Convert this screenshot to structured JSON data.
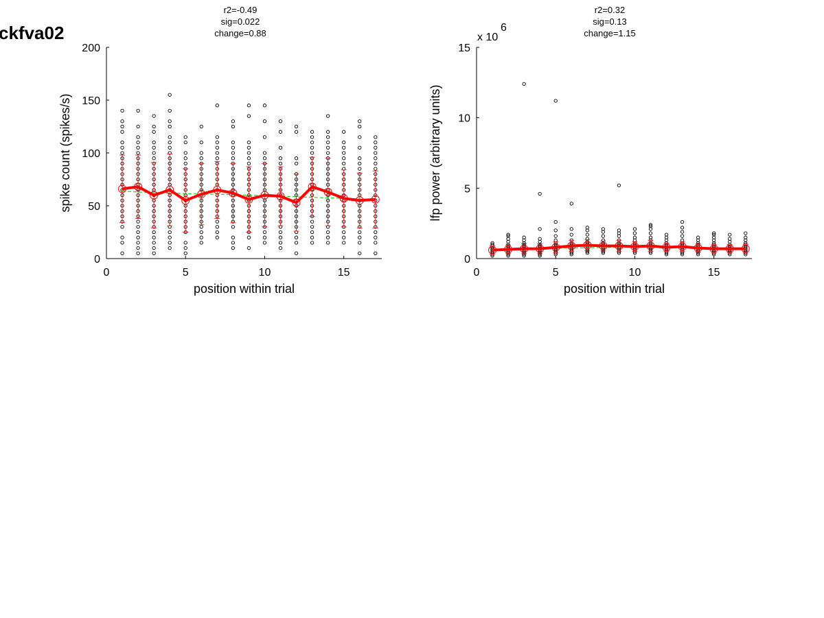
{
  "figure_title": "ckfva02",
  "chart_data": [
    {
      "type": "scatter",
      "annotations": [
        "r2=-0.49",
        "sig=0.022",
        "change=0.88"
      ],
      "xlabel": "position within trial",
      "ylabel": "spike count (spikes/s)",
      "xlim": [
        0,
        17.4
      ],
      "ylim": [
        0,
        200
      ],
      "xticks": [
        0,
        5,
        10,
        15
      ],
      "yticks": [
        0,
        50,
        100,
        150,
        200
      ],
      "multiplier": "",
      "grid": false,
      "colors": {
        "mean": "#ff0000",
        "errorbar": "#e03030",
        "fit": "#22cc22",
        "points": "#000000"
      },
      "scatter_points": [
        [
          1,
          [
            5,
            15,
            20,
            30,
            35,
            40,
            45,
            50,
            55,
            60,
            65,
            70,
            75,
            80,
            85,
            90,
            95,
            100,
            105,
            110,
            120,
            125,
            130,
            140
          ]
        ],
        [
          2,
          [
            5,
            10,
            15,
            20,
            25,
            30,
            35,
            40,
            45,
            50,
            55,
            60,
            65,
            70,
            75,
            80,
            85,
            90,
            95,
            100,
            105,
            110,
            115,
            125,
            140
          ]
        ],
        [
          3,
          [
            5,
            10,
            15,
            20,
            25,
            30,
            35,
            40,
            45,
            50,
            55,
            60,
            65,
            70,
            75,
            80,
            85,
            90,
            95,
            100,
            105,
            110,
            120,
            125,
            135
          ]
        ],
        [
          4,
          [
            10,
            15,
            20,
            25,
            30,
            35,
            40,
            45,
            50,
            55,
            60,
            65,
            70,
            75,
            80,
            85,
            90,
            95,
            100,
            105,
            110,
            115,
            125,
            130,
            140,
            155
          ]
        ],
        [
          5,
          [
            5,
            10,
            15,
            25,
            30,
            35,
            40,
            45,
            50,
            55,
            60,
            65,
            70,
            75,
            80,
            85,
            90,
            95,
            100,
            110,
            115
          ]
        ],
        [
          6,
          [
            15,
            20,
            25,
            30,
            35,
            40,
            45,
            50,
            55,
            60,
            65,
            70,
            75,
            80,
            85,
            90,
            95,
            100,
            110,
            125
          ]
        ],
        [
          7,
          [
            20,
            25,
            30,
            35,
            40,
            45,
            50,
            55,
            60,
            65,
            70,
            75,
            80,
            85,
            90,
            95,
            100,
            105,
            110,
            115,
            145
          ]
        ],
        [
          8,
          [
            10,
            15,
            20,
            30,
            35,
            40,
            45,
            50,
            55,
            60,
            65,
            70,
            75,
            80,
            85,
            90,
            95,
            100,
            105,
            110,
            125,
            130
          ]
        ],
        [
          9,
          [
            10,
            20,
            25,
            30,
            35,
            40,
            45,
            50,
            55,
            60,
            65,
            70,
            75,
            80,
            85,
            90,
            95,
            100,
            105,
            110,
            135,
            145
          ]
        ],
        [
          10,
          [
            15,
            20,
            25,
            30,
            35,
            40,
            45,
            50,
            55,
            60,
            65,
            70,
            75,
            80,
            85,
            90,
            95,
            100,
            115,
            130,
            145
          ]
        ],
        [
          11,
          [
            10,
            15,
            20,
            25,
            30,
            35,
            40,
            45,
            50,
            55,
            60,
            65,
            70,
            75,
            80,
            85,
            90,
            95,
            105,
            120,
            130
          ]
        ],
        [
          12,
          [
            5,
            15,
            20,
            25,
            30,
            35,
            40,
            45,
            50,
            55,
            60,
            65,
            70,
            75,
            80,
            90,
            95,
            120,
            125
          ]
        ],
        [
          13,
          [
            15,
            20,
            25,
            30,
            35,
            40,
            45,
            50,
            55,
            60,
            65,
            70,
            75,
            80,
            85,
            90,
            95,
            100,
            105,
            110,
            115,
            120
          ]
        ],
        [
          14,
          [
            15,
            20,
            25,
            30,
            35,
            40,
            45,
            50,
            55,
            60,
            65,
            70,
            75,
            80,
            85,
            90,
            95,
            100,
            105,
            110,
            115,
            120,
            135
          ]
        ],
        [
          15,
          [
            15,
            20,
            25,
            30,
            35,
            40,
            45,
            50,
            55,
            60,
            65,
            70,
            75,
            80,
            85,
            90,
            95,
            100,
            105,
            110,
            120
          ]
        ],
        [
          16,
          [
            5,
            15,
            20,
            25,
            30,
            35,
            40,
            45,
            50,
            55,
            60,
            65,
            70,
            75,
            80,
            85,
            90,
            95,
            105,
            115,
            125,
            130
          ]
        ],
        [
          17,
          [
            5,
            15,
            20,
            25,
            30,
            35,
            40,
            45,
            50,
            55,
            60,
            65,
            70,
            75,
            80,
            85,
            90,
            95,
            100,
            105,
            110,
            115
          ]
        ]
      ],
      "series": [
        {
          "role": "mean",
          "x": [
            1,
            2,
            3,
            4,
            5,
            6,
            7,
            8,
            9,
            10,
            11,
            12,
            13,
            14,
            15,
            16,
            17
          ],
          "y": [
            66,
            68,
            60,
            65,
            55,
            61,
            65,
            62,
            56,
            60,
            59,
            53,
            68,
            63,
            57,
            55,
            56
          ],
          "err": [
            32,
            30,
            31,
            34,
            30,
            29,
            27,
            28,
            31,
            30,
            28,
            27,
            28,
            32,
            27,
            26,
            27
          ]
        },
        {
          "role": "fit",
          "x": [
            1,
            2,
            3,
            4,
            5,
            6,
            7,
            8,
            9,
            10,
            11,
            12,
            13,
            14,
            15,
            16,
            17
          ],
          "y": [
            64,
            63,
            62.5,
            62,
            61.5,
            61,
            61,
            60.5,
            60,
            59.5,
            59,
            58.5,
            58,
            57.5,
            57,
            56.5,
            56
          ]
        }
      ]
    },
    {
      "type": "scatter",
      "annotations": [
        "r2=0.32",
        "sig=0.13",
        "change=1.15"
      ],
      "xlabel": "position within trial",
      "ylabel": "lfp power (arbitrary units)",
      "xlim": [
        0,
        17.4
      ],
      "ylim": [
        0,
        15
      ],
      "xticks": [
        0,
        5,
        10,
        15
      ],
      "yticks": [
        0,
        5,
        10,
        15
      ],
      "multiplier": "x 10",
      "multiplier_exponent": "6",
      "grid": false,
      "colors": {
        "mean": "#ff0000",
        "errorbar": "#e03030",
        "fit": "#22cc22",
        "points": "#000000"
      },
      "scatter_points": [
        [
          1,
          [
            0.2,
            0.3,
            0.4,
            0.5,
            0.6,
            0.7,
            0.8,
            0.9,
            1.0,
            1.1
          ]
        ],
        [
          2,
          [
            0.2,
            0.3,
            0.4,
            0.5,
            0.6,
            0.7,
            0.8,
            0.9,
            1.0,
            1.2,
            1.4,
            1.6,
            1.7
          ]
        ],
        [
          3,
          [
            0.2,
            0.3,
            0.4,
            0.5,
            0.6,
            0.7,
            0.8,
            0.9,
            1.0,
            1.1,
            1.3,
            1.5,
            12.4
          ]
        ],
        [
          4,
          [
            0.2,
            0.3,
            0.4,
            0.5,
            0.6,
            0.7,
            0.8,
            0.9,
            1.0,
            1.2,
            1.4,
            2.1,
            4.6
          ]
        ],
        [
          5,
          [
            0.3,
            0.4,
            0.5,
            0.6,
            0.7,
            0.8,
            0.9,
            1.0,
            1.1,
            1.3,
            1.6,
            2.0,
            2.6,
            11.2
          ]
        ],
        [
          6,
          [
            0.3,
            0.4,
            0.5,
            0.6,
            0.7,
            0.8,
            0.9,
            1.0,
            1.1,
            1.3,
            1.7,
            2.1,
            3.9
          ]
        ],
        [
          7,
          [
            0.4,
            0.5,
            0.6,
            0.7,
            0.8,
            0.9,
            1.0,
            1.1,
            1.2,
            1.4,
            1.7,
            2.0,
            2.2
          ]
        ],
        [
          8,
          [
            0.4,
            0.5,
            0.6,
            0.7,
            0.8,
            0.9,
            1.0,
            1.1,
            1.3,
            1.6,
            1.9,
            2.1
          ]
        ],
        [
          9,
          [
            0.4,
            0.5,
            0.6,
            0.7,
            0.8,
            0.9,
            1.0,
            1.1,
            1.3,
            1.6,
            1.8,
            2.0,
            5.2
          ]
        ],
        [
          10,
          [
            0.4,
            0.5,
            0.6,
            0.7,
            0.8,
            0.9,
            1.0,
            1.1,
            1.3,
            1.5,
            1.8,
            2.1
          ]
        ],
        [
          11,
          [
            0.4,
            0.5,
            0.6,
            0.7,
            0.8,
            0.9,
            1.0,
            1.1,
            1.3,
            1.5,
            1.8,
            2.1,
            2.3,
            2.4
          ]
        ],
        [
          12,
          [
            0.3,
            0.4,
            0.5,
            0.6,
            0.7,
            0.8,
            0.9,
            1.0,
            1.1,
            1.3,
            1.5,
            1.7
          ]
        ],
        [
          13,
          [
            0.3,
            0.4,
            0.5,
            0.6,
            0.7,
            0.8,
            0.9,
            1.0,
            1.1,
            1.3,
            1.6,
            1.9,
            2.2,
            2.6
          ]
        ],
        [
          14,
          [
            0.3,
            0.4,
            0.5,
            0.6,
            0.7,
            0.8,
            0.9,
            1.0,
            1.1,
            1.3,
            1.5
          ]
        ],
        [
          15,
          [
            0.3,
            0.4,
            0.5,
            0.6,
            0.7,
            0.8,
            0.9,
            1.0,
            1.1,
            1.3,
            1.5,
            1.7,
            1.8
          ]
        ],
        [
          16,
          [
            0.3,
            0.4,
            0.5,
            0.6,
            0.7,
            0.8,
            0.9,
            1.0,
            1.2,
            1.4,
            1.7
          ]
        ],
        [
          17,
          [
            0.3,
            0.4,
            0.5,
            0.6,
            0.7,
            0.8,
            0.9,
            1.0,
            1.1,
            1.3,
            1.5,
            1.8
          ]
        ]
      ],
      "series": [
        {
          "role": "mean",
          "x": [
            1,
            2,
            3,
            4,
            5,
            6,
            7,
            8,
            9,
            10,
            11,
            12,
            13,
            14,
            15,
            16,
            17
          ],
          "y": [
            0.6,
            0.65,
            0.7,
            0.7,
            0.8,
            0.9,
            0.95,
            0.9,
            0.9,
            0.85,
            0.9,
            0.8,
            0.85,
            0.75,
            0.7,
            0.7,
            0.7
          ],
          "err": [
            0.3,
            0.3,
            0.35,
            0.35,
            0.4,
            0.4,
            0.4,
            0.35,
            0.4,
            0.35,
            0.4,
            0.3,
            0.35,
            0.3,
            0.3,
            0.3,
            0.3
          ]
        },
        {
          "role": "fit",
          "x": [
            1,
            2,
            3,
            4,
            5,
            6,
            7,
            8,
            9,
            10,
            11,
            12,
            13,
            14,
            15,
            16,
            17
          ],
          "y": [
            0.65,
            0.67,
            0.69,
            0.71,
            0.73,
            0.75,
            0.77,
            0.79,
            0.8,
            0.8,
            0.8,
            0.79,
            0.78,
            0.77,
            0.76,
            0.75,
            0.74
          ]
        }
      ]
    }
  ]
}
